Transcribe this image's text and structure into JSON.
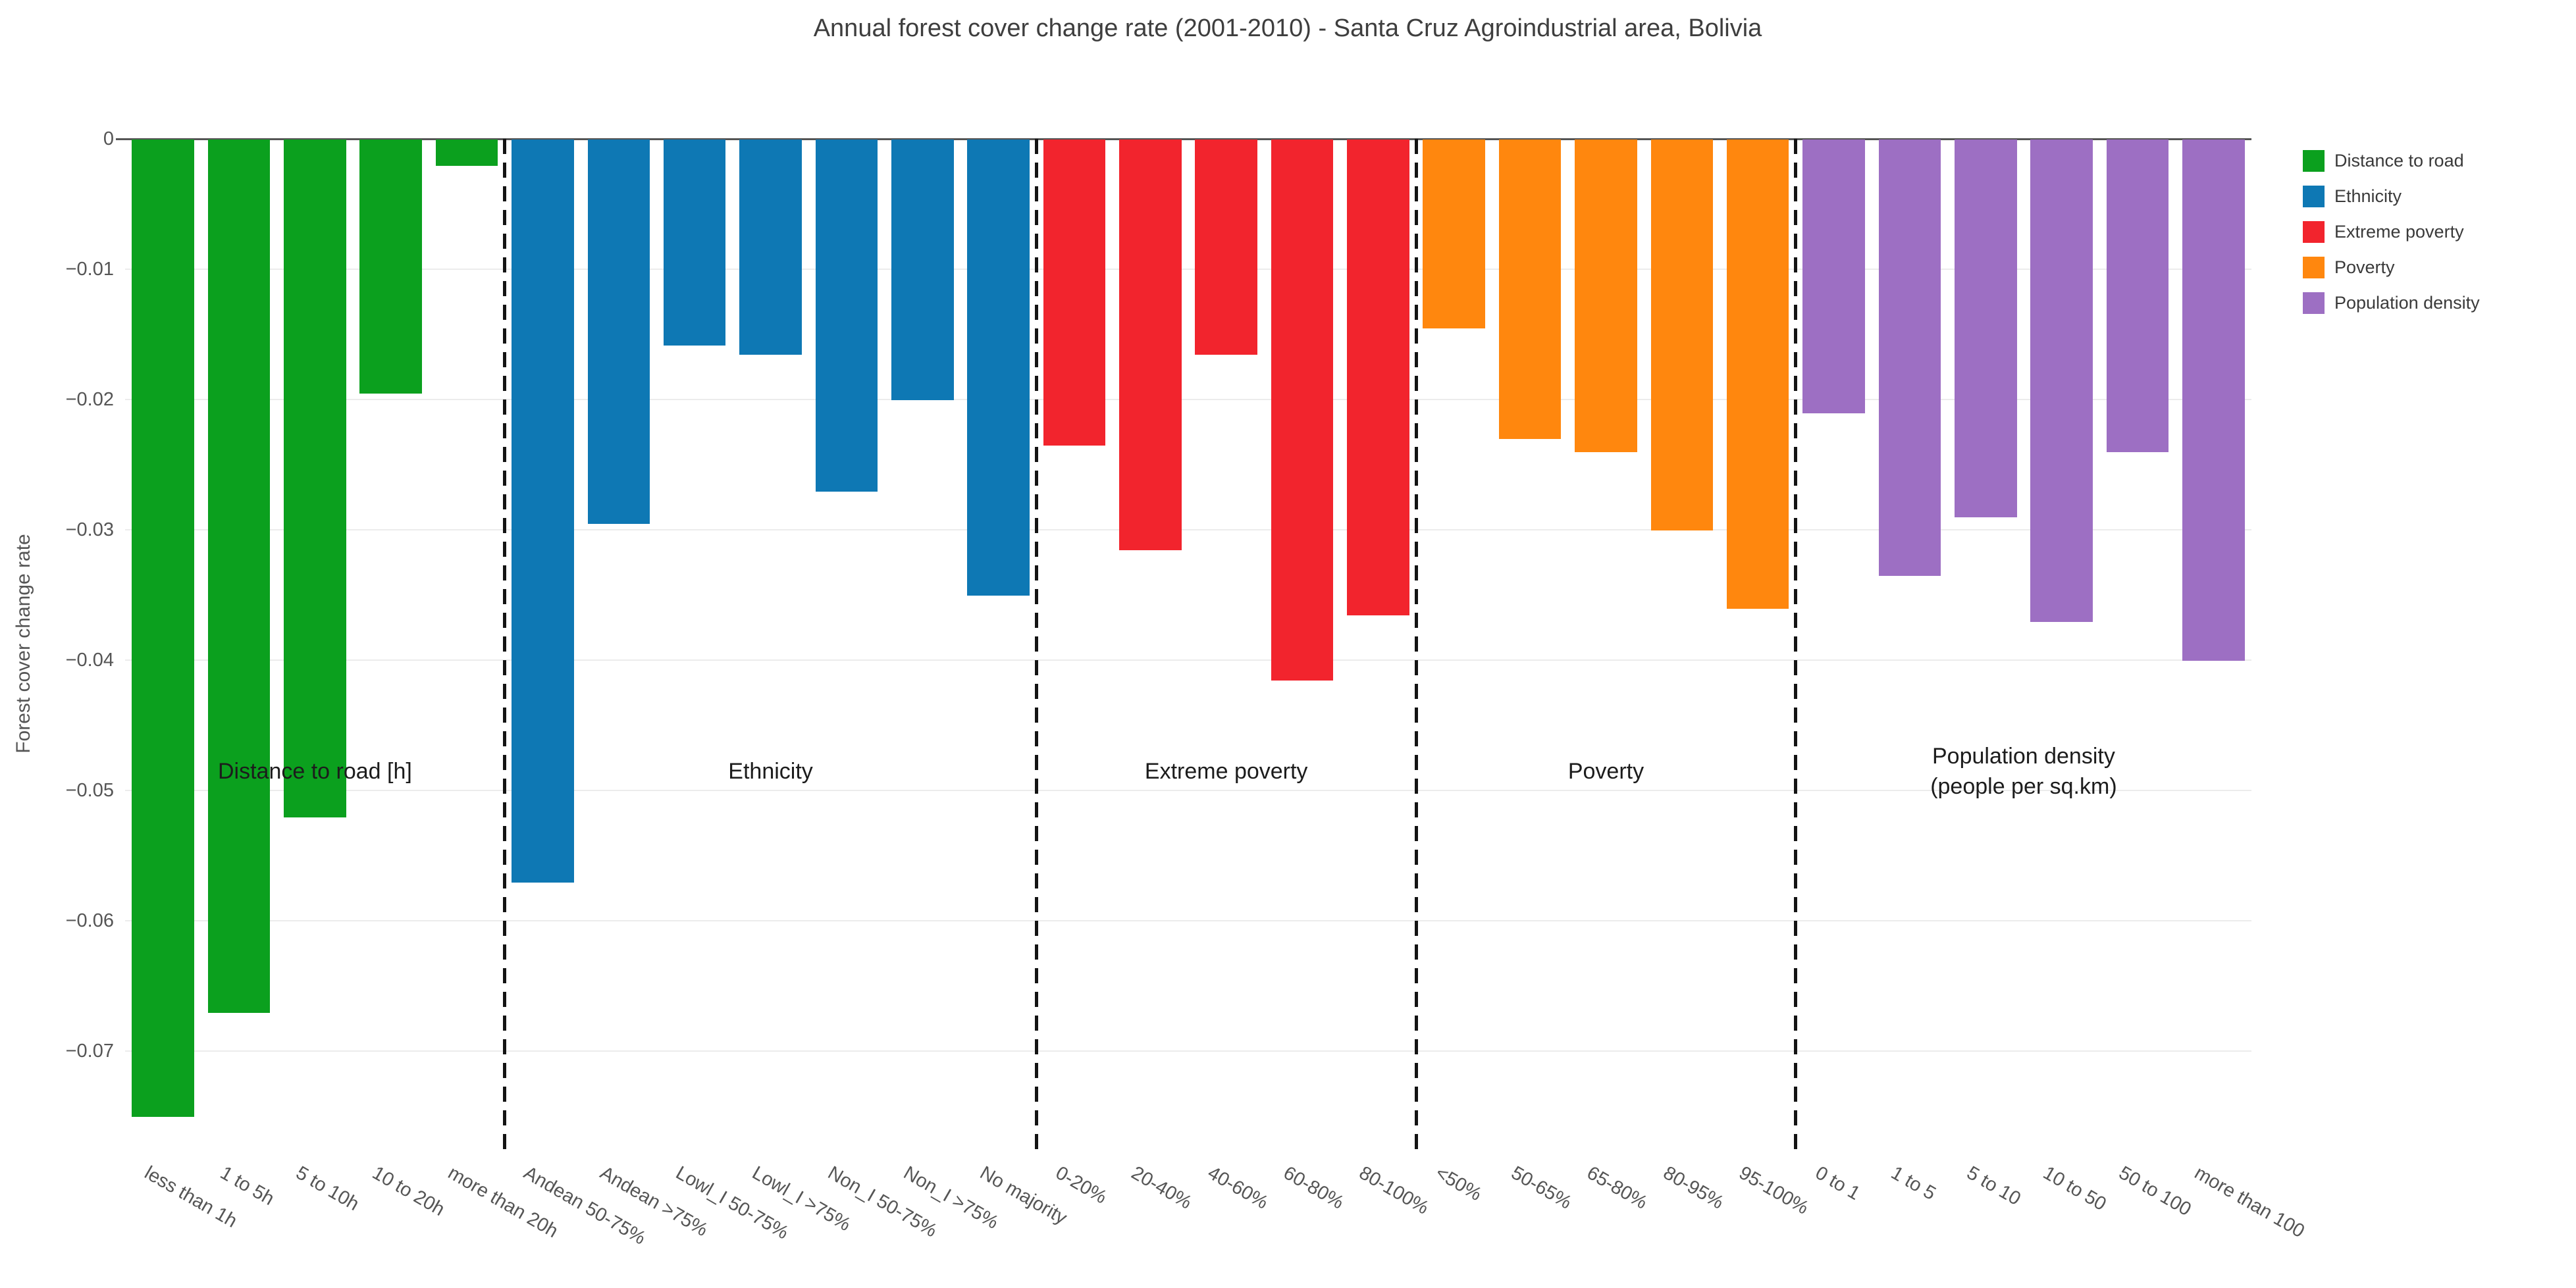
{
  "title": "Annual forest cover change rate (2001-2010) - Santa Cruz Agroindustrial area, Bolivia",
  "y_axis": {
    "title": "Forest cover change rate",
    "ticks": [
      {
        "label": "0",
        "value": 0
      },
      {
        "label": "−0.01",
        "value": -0.01
      },
      {
        "label": "−0.02",
        "value": -0.02
      },
      {
        "label": "−0.03",
        "value": -0.03
      },
      {
        "label": "−0.04",
        "value": -0.04
      },
      {
        "label": "−0.05",
        "value": -0.05
      },
      {
        "label": "−0.06",
        "value": -0.06
      },
      {
        "label": "−0.07",
        "value": -0.07
      }
    ]
  },
  "legend": {
    "items": [
      {
        "label": "Distance to road",
        "color": "#0ba01e"
      },
      {
        "label": "Ethnicity",
        "color": "#0e78b4"
      },
      {
        "label": "Extreme poverty",
        "color": "#f2242d"
      },
      {
        "label": "Poverty",
        "color": "#ff870e"
      },
      {
        "label": "Population density",
        "color": "#9d6fc3"
      }
    ]
  },
  "chart_data": {
    "type": "bar",
    "title": "Annual forest cover change rate (2001-2010) - Santa Cruz Agroindustrial area, Bolivia",
    "xlabel": "",
    "ylabel": "Forest cover change rate",
    "ylim": [
      -0.0775,
      0
    ],
    "grid": true,
    "gridline_step": 0.01,
    "legend_position": "top-right",
    "group_separator_style": "dashed",
    "groups": [
      {
        "name": "Distance to road",
        "annotation": "Distance to road [h]",
        "color": "#0ba01e",
        "categories": [
          "less than 1h",
          "1 to 5h",
          "5 to 10h",
          "10 to 20h",
          "more than 20h"
        ],
        "values": [
          -0.075,
          -0.067,
          -0.052,
          -0.0195,
          -0.002
        ]
      },
      {
        "name": "Ethnicity",
        "annotation": "Ethnicity",
        "color": "#0e78b4",
        "categories": [
          "Andean 50-75%",
          "Andean >75%",
          "Lowl_I 50-75%",
          "Lowl_I >75%",
          "Non_I 50-75%",
          "Non_I >75%",
          "No majority"
        ],
        "values": [
          -0.057,
          -0.0295,
          -0.0158,
          -0.0165,
          -0.027,
          -0.02,
          -0.035
        ]
      },
      {
        "name": "Extreme poverty",
        "annotation": "Extreme poverty",
        "color": "#f2242d",
        "categories": [
          "0-20%",
          "20-40%",
          "40-60%",
          "60-80%",
          "80-100%"
        ],
        "values": [
          -0.0235,
          -0.0315,
          -0.0165,
          -0.0415,
          -0.0365
        ]
      },
      {
        "name": "Poverty",
        "annotation": "Poverty",
        "color": "#ff870e",
        "categories": [
          "<50%",
          "50-65%",
          "65-80%",
          "80-95%",
          "95-100%"
        ],
        "values": [
          -0.0145,
          -0.023,
          -0.024,
          -0.03,
          -0.036
        ]
      },
      {
        "name": "Population density",
        "annotation": "Population density\n(people per sq.km)",
        "color": "#9d6fc3",
        "categories": [
          "0 to 1",
          "1 to 5",
          "5 to 10",
          "10 to 50",
          "50 to 100",
          "more than 100"
        ],
        "values": [
          -0.021,
          -0.0335,
          -0.029,
          -0.037,
          -0.024,
          -0.04
        ]
      }
    ]
  }
}
